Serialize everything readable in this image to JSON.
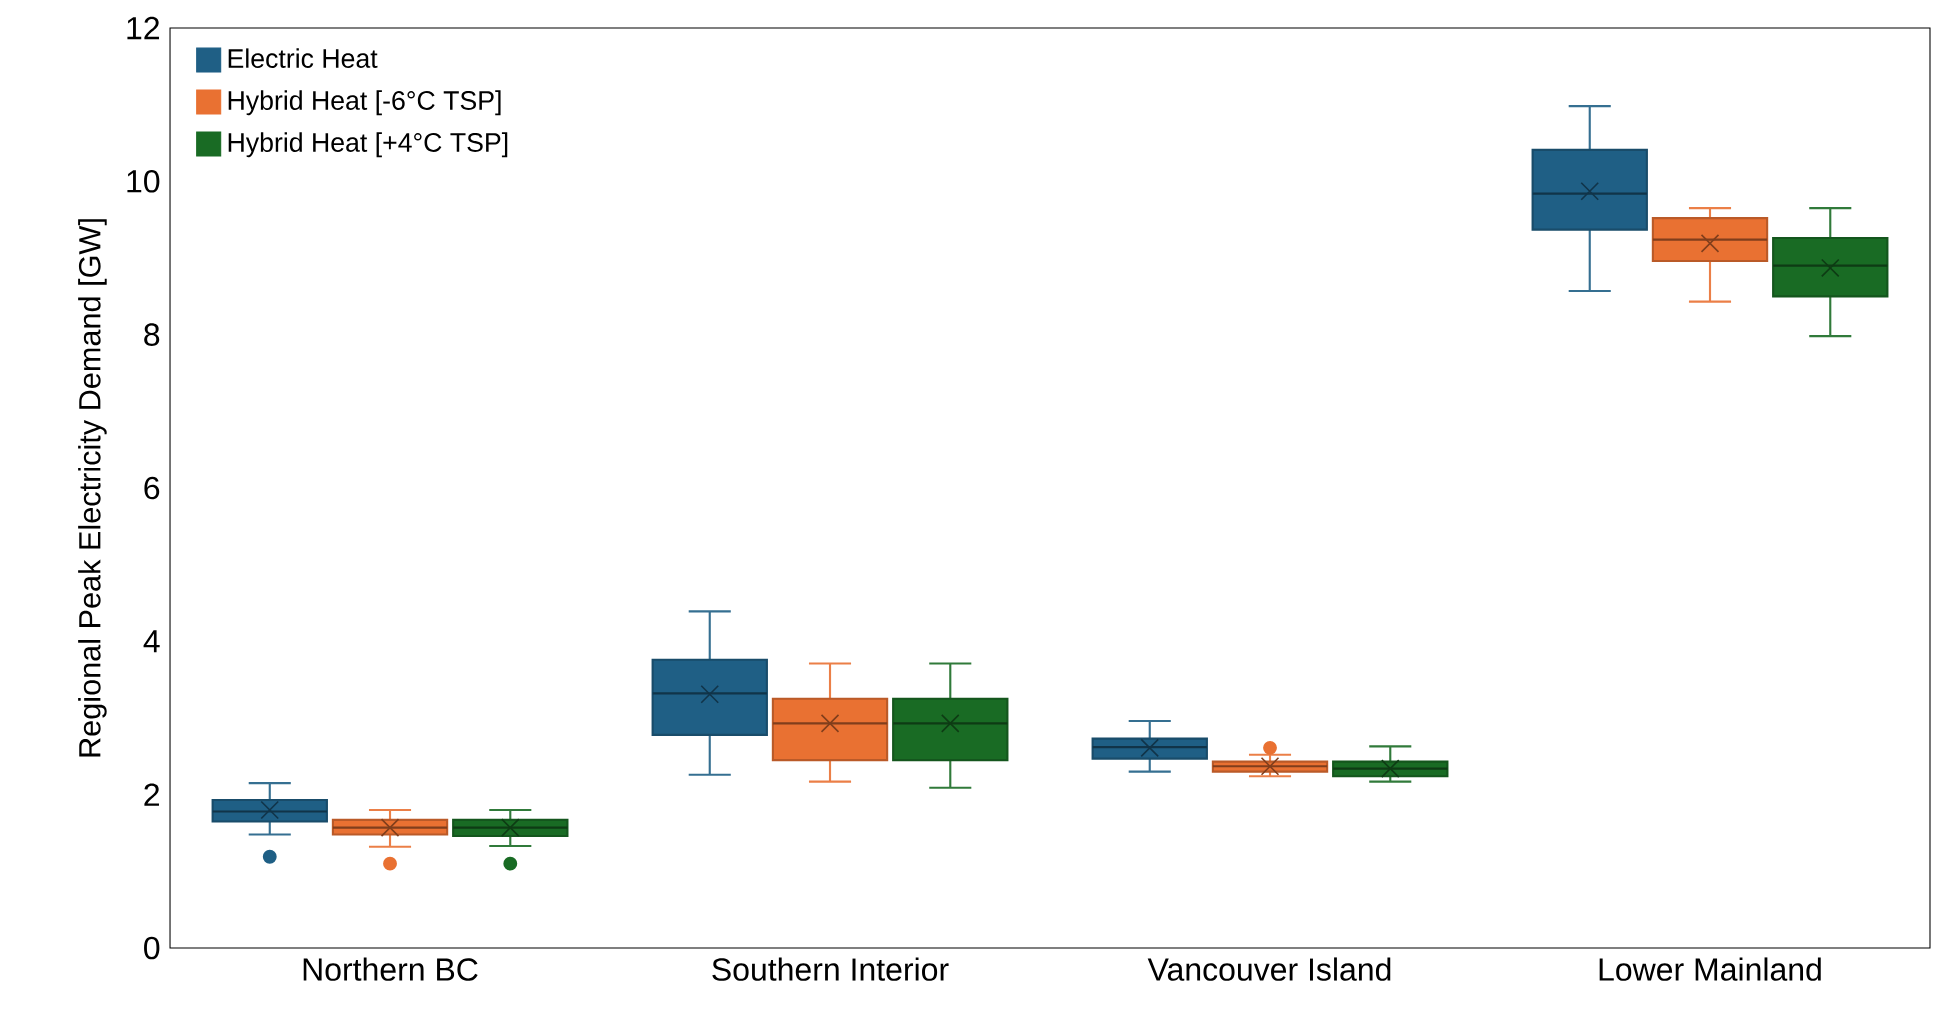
{
  "chart_data": {
    "type": "box",
    "ylabel": "Regional Peak Electricity Demand [GW]",
    "categories": [
      "Northern BC",
      "Southern Interior",
      "Vancouver Island",
      "Lower Mainland"
    ],
    "ylim": [
      0,
      12
    ],
    "yticks": [
      0,
      2,
      4,
      6,
      8,
      10,
      12
    ],
    "grid": false,
    "legend": "top left",
    "series": [
      {
        "name": "Electric Heat",
        "color": "#1f5f85",
        "boxes": [
          {
            "low": 1.48,
            "q1": 1.65,
            "median": 1.78,
            "q3": 1.93,
            "high": 2.15,
            "mean": 1.8,
            "outliers": [
              1.19
            ]
          },
          {
            "low": 2.26,
            "q1": 2.78,
            "median": 3.32,
            "q3": 3.76,
            "high": 4.39,
            "mean": 3.31
          },
          {
            "low": 2.3,
            "q1": 2.47,
            "median": 2.62,
            "q3": 2.73,
            "high": 2.96,
            "mean": 2.61
          },
          {
            "low": 8.57,
            "q1": 9.37,
            "median": 9.84,
            "q3": 10.41,
            "high": 10.98,
            "mean": 9.87
          }
        ]
      },
      {
        "name": "Hybrid Heat [-6°C TSP]",
        "color": "#e97132",
        "boxes": [
          {
            "low": 1.32,
            "q1": 1.48,
            "median": 1.57,
            "q3": 1.67,
            "high": 1.8,
            "mean": 1.57,
            "outliers": [
              1.1
            ]
          },
          {
            "low": 2.17,
            "q1": 2.45,
            "median": 2.93,
            "q3": 3.25,
            "high": 3.71,
            "mean": 2.93
          },
          {
            "low": 2.24,
            "q1": 2.3,
            "median": 2.37,
            "q3": 2.43,
            "high": 2.52,
            "mean": 2.37,
            "outliers": [
              2.61
            ]
          },
          {
            "low": 8.43,
            "q1": 8.96,
            "median": 9.24,
            "q3": 9.52,
            "high": 9.65,
            "mean": 9.19
          }
        ]
      },
      {
        "name": "Hybrid Heat [+4°C TSP]",
        "color": "#196b24",
        "boxes": [
          {
            "low": 1.33,
            "q1": 1.46,
            "median": 1.57,
            "q3": 1.67,
            "high": 1.8,
            "mean": 1.57,
            "outliers": [
              1.1
            ]
          },
          {
            "low": 2.09,
            "q1": 2.45,
            "median": 2.93,
            "q3": 3.25,
            "high": 3.71,
            "mean": 2.93
          },
          {
            "low": 2.17,
            "q1": 2.24,
            "median": 2.34,
            "q3": 2.43,
            "high": 2.63,
            "mean": 2.34
          },
          {
            "low": 7.98,
            "q1": 8.5,
            "median": 8.9,
            "q3": 9.26,
            "high": 9.65,
            "mean": 8.87
          }
        ]
      }
    ]
  }
}
